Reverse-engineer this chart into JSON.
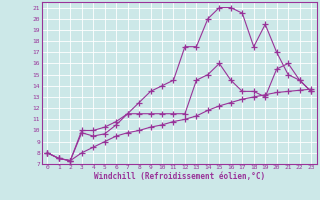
{
  "xlabel": "Windchill (Refroidissement éolien,°C)",
  "bg_color": "#cce8e8",
  "grid_color": "#ffffff",
  "line_color": "#993399",
  "x_all": [
    0,
    1,
    2,
    3,
    4,
    5,
    6,
    7,
    8,
    9,
    10,
    11,
    12,
    13,
    14,
    15,
    16,
    17,
    18,
    19,
    20,
    21,
    22,
    23
  ],
  "ylim": [
    7,
    21.5
  ],
  "xlim": [
    -0.5,
    23.5
  ],
  "yticks": [
    7,
    8,
    9,
    10,
    11,
    12,
    13,
    14,
    15,
    16,
    17,
    18,
    19,
    20,
    21
  ],
  "series": [
    {
      "x": [
        0,
        1,
        2,
        3,
        4,
        5,
        6,
        7,
        8,
        9,
        10,
        11,
        12,
        13,
        14,
        15,
        16,
        17,
        18,
        19,
        20,
        21,
        22,
        23
      ],
      "y": [
        8,
        7.5,
        7.3,
        8.0,
        8.5,
        9.0,
        9.5,
        9.8,
        10.0,
        10.3,
        10.5,
        10.8,
        11.0,
        11.3,
        11.8,
        12.2,
        12.5,
        12.8,
        13.0,
        13.2,
        13.4,
        13.5,
        13.6,
        13.7
      ]
    },
    {
      "x": [
        0,
        1,
        2,
        3,
        4,
        5,
        6,
        7,
        8,
        9,
        10,
        11,
        12,
        13,
        14,
        15,
        16,
        17,
        18,
        19,
        20,
        21,
        22,
        23
      ],
      "y": [
        8,
        7.5,
        7.3,
        10.0,
        10.0,
        10.3,
        10.8,
        11.5,
        11.5,
        11.5,
        11.5,
        11.5,
        11.5,
        14.5,
        15.0,
        16.0,
        14.5,
        13.5,
        13.5,
        13.0,
        15.5,
        16.0,
        14.5,
        13.5
      ]
    },
    {
      "x": [
        0,
        1,
        2,
        3,
        4,
        5,
        6,
        7,
        8,
        9,
        10,
        11,
        12,
        13,
        14,
        15,
        16,
        17,
        18,
        19,
        20,
        21,
        22,
        23
      ],
      "y": [
        8,
        7.5,
        7.3,
        9.8,
        9.5,
        9.7,
        10.5,
        11.5,
        12.5,
        13.5,
        14.0,
        14.5,
        17.5,
        17.5,
        20.0,
        21.0,
        21.0,
        20.5,
        17.5,
        19.5,
        17.0,
        15.0,
        14.5,
        13.5
      ]
    }
  ]
}
